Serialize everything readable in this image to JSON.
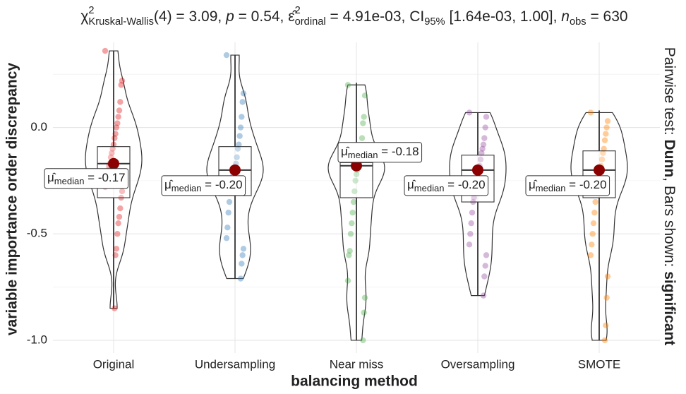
{
  "chart_data": {
    "type": "violin",
    "title_parts": [
      {
        "text": "χ"
      },
      {
        "text": "2",
        "shift": "sup"
      },
      {
        "text": "Kruskal-Wallis",
        "shift": "sub"
      },
      {
        "text": "(4) = 3.09, "
      },
      {
        "text": "p",
        "italic": true
      },
      {
        "text": " = 0.54, "
      },
      {
        "text": "ε̂"
      },
      {
        "text": "2",
        "shift": "sup"
      },
      {
        "text": "ordinal",
        "shift": "sub"
      },
      {
        "text": " = 4.91e-03, CI"
      },
      {
        "text": "95%",
        "shift": "sub"
      },
      {
        "text": " [1.64e-03, 1.00], "
      },
      {
        "text": "n",
        "italic": true
      },
      {
        "text": "obs",
        "shift": "sub"
      },
      {
        "text": " = 630"
      }
    ],
    "caption_parts": [
      {
        "text": "Pairwise test: "
      },
      {
        "text": "Dunn",
        "bold": true
      },
      {
        "text": ", Bars shown: "
      },
      {
        "text": "significant",
        "bold": true
      }
    ],
    "x_label": "balancing method",
    "y_label": "variable importance order discrepancy",
    "ylim": [
      -1.06,
      0.4
    ],
    "yticks": [
      {
        "value": -1.0,
        "label": "-1.0"
      },
      {
        "value": -0.5,
        "label": "-0.5"
      },
      {
        "value": 0.0,
        "label": "0.0"
      }
    ],
    "minor_yticks": [
      -0.75,
      -0.25,
      0.25
    ],
    "grid": true,
    "median_label": {
      "symbol": "μ̂",
      "subscript": "median",
      "equals": " = "
    },
    "median_color": "#8b0000",
    "categories": [
      "Original",
      "Undersampling",
      "Near miss",
      "Oversampling",
      "SMOTE"
    ],
    "series": [
      {
        "name": "Original",
        "color": "#e41a1c",
        "median": -0.17,
        "value_label": "-0.17",
        "q1": -0.33,
        "q3": -0.09,
        "whisker_low": -0.85,
        "whisker_high": 0.36,
        "points": [
          0.36,
          0.22,
          0.2,
          0.12,
          0.08,
          0.05,
          0.02,
          0,
          -0.03,
          -0.05,
          -0.08,
          -0.1,
          -0.12,
          -0.14,
          -0.17,
          -0.18,
          -0.2,
          -0.22,
          -0.25,
          -0.28,
          -0.3,
          -0.33,
          -0.38,
          -0.42,
          -0.45,
          -0.5,
          -0.57,
          -0.6,
          -0.85
        ]
      },
      {
        "name": "Undersampling",
        "color": "#377eb8",
        "median": -0.2,
        "value_label": "-0.20",
        "q1": -0.32,
        "q3": -0.09,
        "whisker_low": -0.71,
        "whisker_high": 0.34,
        "points": [
          0.34,
          0.16,
          0.12,
          0.05,
          0,
          -0.04,
          -0.08,
          -0.1,
          -0.14,
          -0.17,
          -0.19,
          -0.2,
          -0.22,
          -0.25,
          -0.28,
          -0.3,
          -0.35,
          -0.4,
          -0.47,
          -0.52,
          -0.57,
          -0.6,
          -0.64,
          -0.71
        ]
      },
      {
        "name": "Near miss",
        "color": "#4daf4a",
        "median": -0.18,
        "value_label": "-0.18",
        "q1": -0.33,
        "q3": -0.165,
        "whisker_low": -1.0,
        "whisker_high": 0.21,
        "points": [
          0.2,
          0.15,
          0.05,
          0.02,
          -0.05,
          -0.1,
          -0.15,
          -0.17,
          -0.18,
          -0.2,
          -0.22,
          -0.25,
          -0.3,
          -0.35,
          -0.4,
          -0.45,
          -0.5,
          -0.58,
          -0.6,
          -0.72,
          -0.8,
          -0.87,
          -1.0
        ]
      },
      {
        "name": "Oversampling",
        "color": "#984ea3",
        "median": -0.2,
        "value_label": "-0.20",
        "q1": -0.35,
        "q3": -0.13,
        "whisker_low": -0.79,
        "whisker_high": 0.07,
        "points": [
          0.07,
          0.05,
          0,
          -0.05,
          -0.08,
          -0.1,
          -0.12,
          -0.15,
          -0.18,
          -0.2,
          -0.22,
          -0.25,
          -0.28,
          -0.3,
          -0.33,
          -0.35,
          -0.4,
          -0.45,
          -0.5,
          -0.55,
          -0.6,
          -0.65,
          -0.7,
          -0.79
        ]
      },
      {
        "name": "SMOTE",
        "color": "#ff7f00",
        "median": -0.2,
        "value_label": "-0.20",
        "q1": -0.33,
        "q3": -0.11,
        "whisker_low": -1.0,
        "whisker_high": 0.08,
        "points": [
          0.07,
          0.03,
          0,
          -0.03,
          -0.06,
          -0.1,
          -0.12,
          -0.15,
          -0.18,
          -0.2,
          -0.22,
          -0.25,
          -0.28,
          -0.3,
          -0.35,
          -0.4,
          -0.45,
          -0.5,
          -0.55,
          -0.6,
          -0.7,
          -0.8,
          -0.93,
          -1.0
        ]
      }
    ]
  }
}
